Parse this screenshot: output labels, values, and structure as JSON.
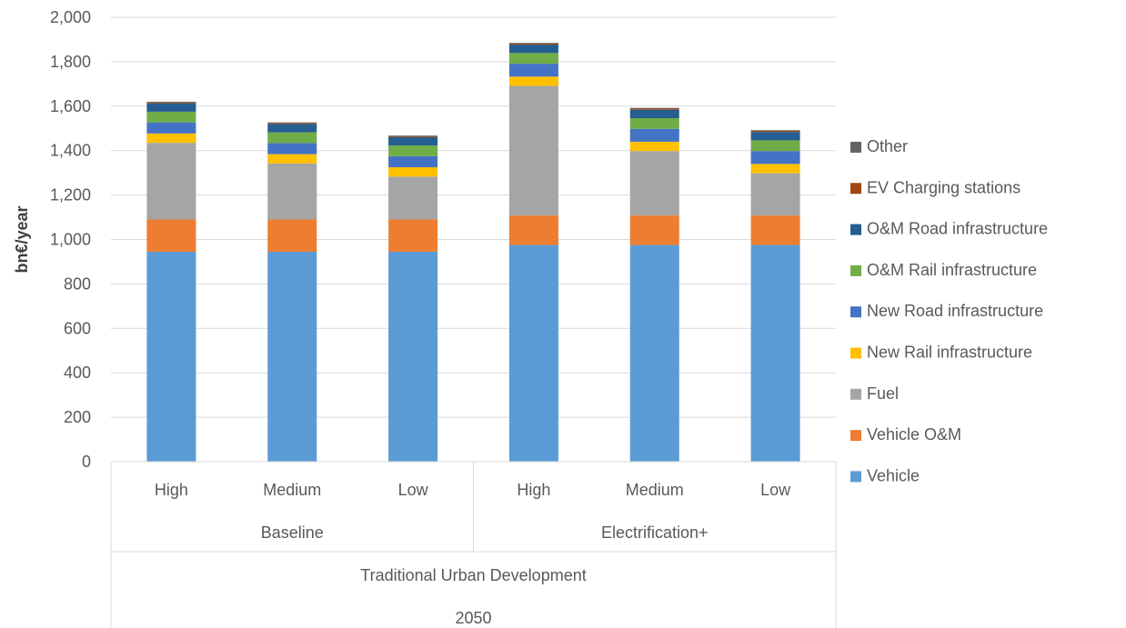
{
  "chart_data": {
    "type": "bar",
    "stacked": true,
    "title": "",
    "ylabel": "bn€/year",
    "xlabel": "",
    "ylim": [
      0,
      2000
    ],
    "yticks": [
      0,
      200,
      400,
      600,
      800,
      1000,
      1200,
      1400,
      1600,
      1800,
      2000
    ],
    "ytick_labels": [
      "0",
      "200",
      "400",
      "600",
      "800",
      "1,000",
      "1,200",
      "1,400",
      "1,600",
      "1,800",
      "2,000"
    ],
    "grid": true,
    "legend_position": "right",
    "categories": [
      "High",
      "Medium",
      "Low",
      "High",
      "Medium",
      "Low"
    ],
    "category_groups": [
      {
        "label": "Baseline",
        "count": 3
      },
      {
        "label": "Electrification+",
        "count": 3
      }
    ],
    "outer_group_labels": [
      "Traditional Urban Development",
      "2050"
    ],
    "series": [
      {
        "name": "Vehicle",
        "color": "#5B9BD5",
        "values": [
          945,
          945,
          945,
          975,
          975,
          975
        ]
      },
      {
        "name": "Vehicle O&M",
        "color": "#ED7D31",
        "values": [
          145,
          145,
          145,
          133,
          133,
          133
        ]
      },
      {
        "name": "Fuel",
        "color": "#A5A5A5",
        "values": [
          345,
          252,
          193,
          583,
          290,
          190
        ]
      },
      {
        "name": "New Rail infrastructure",
        "color": "#FFC000",
        "values": [
          42,
          42,
          42,
          42,
          42,
          42
        ]
      },
      {
        "name": "New Road infrastructure",
        "color": "#4472C4",
        "values": [
          50,
          50,
          50,
          58,
          58,
          58
        ]
      },
      {
        "name": "O&M Rail infrastructure",
        "color": "#70AD47",
        "values": [
          48,
          48,
          48,
          48,
          48,
          48
        ]
      },
      {
        "name": "O&M Road infrastructure",
        "color": "#255E91",
        "values": [
          38,
          38,
          38,
          38,
          38,
          38
        ]
      },
      {
        "name": "EV Charging stations",
        "color": "#9E480E",
        "values": [
          4,
          4,
          4,
          5,
          5,
          5
        ]
      },
      {
        "name": "Other",
        "color": "#636363",
        "values": [
          3,
          3,
          3,
          3,
          3,
          3
        ]
      }
    ]
  }
}
